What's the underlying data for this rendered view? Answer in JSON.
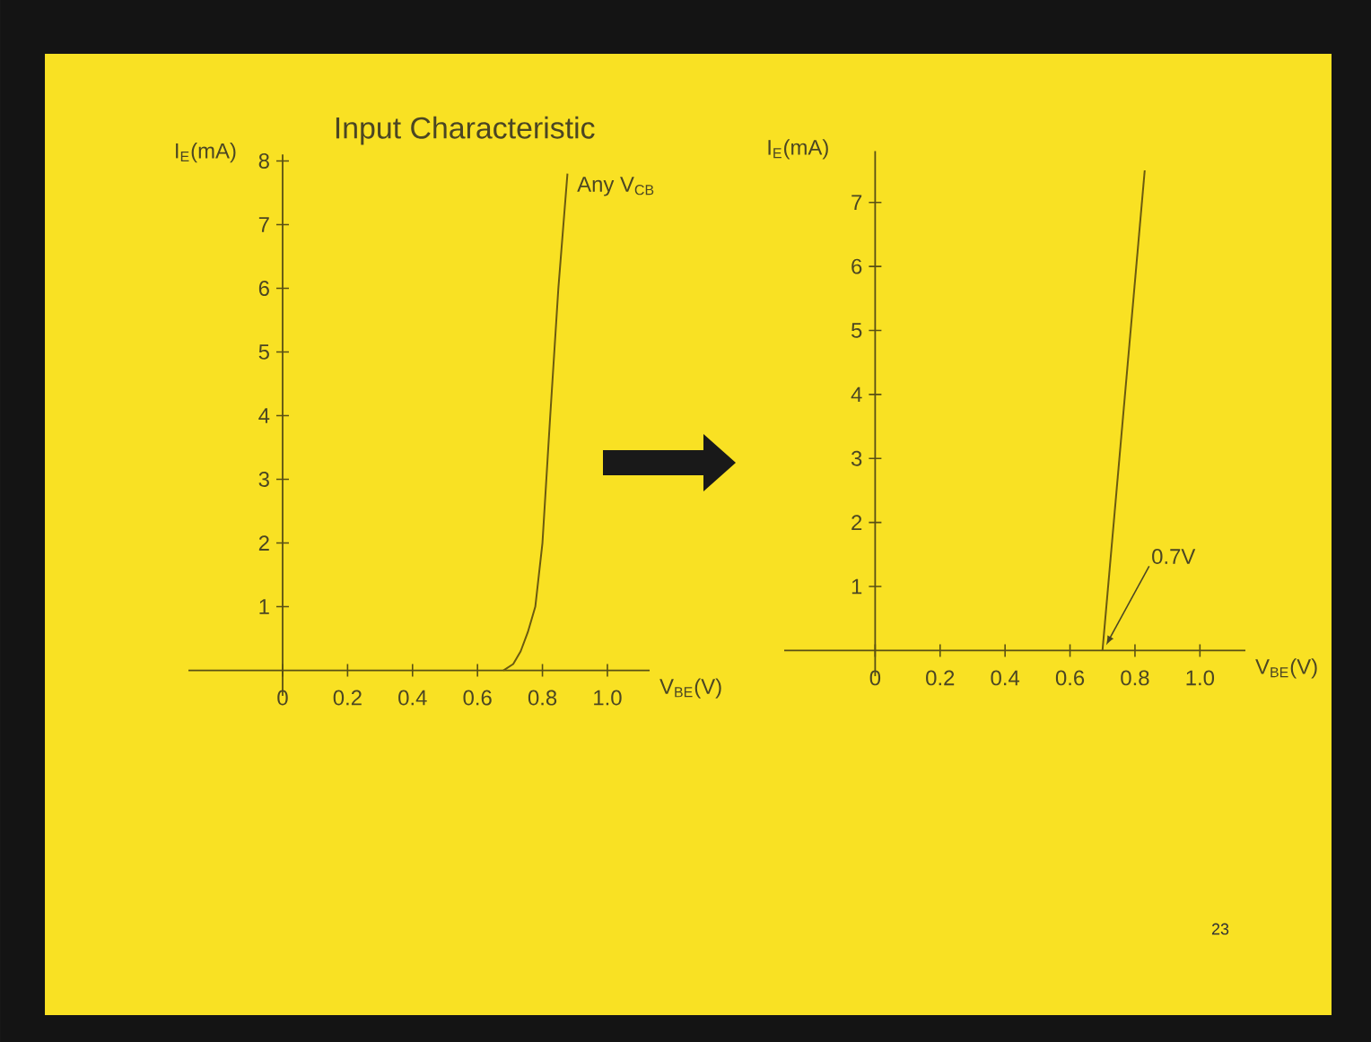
{
  "chart_data": [
    {
      "type": "line",
      "title": "Input Characteristic",
      "xlabel": "V$_{BE}$(V)",
      "ylabel": "I$_{E}$(mA)",
      "x": [
        0.68,
        0.71,
        0.733,
        0.755,
        0.778,
        0.8,
        0.824,
        0.849,
        0.877
      ],
      "series": [
        {
          "color": "#6b5a10",
          "values": [
            0,
            0.1,
            0.3,
            0.6,
            1,
            2,
            4,
            6,
            7.8
          ]
        }
      ],
      "xlim": [
        -0.29,
        1.13
      ],
      "ylim": [
        -0.4,
        8.1
      ],
      "xticks": [
        0,
        0.2,
        0.4,
        0.6,
        0.8,
        {
          "value": 1,
          "label": "1.0"
        }
      ],
      "yticks": [
        1,
        2,
        3,
        4,
        5,
        6,
        7,
        8
      ],
      "marker": "none",
      "line_style": "solid",
      "annotations": [
        {
          "text": "Any V$_{CB}$",
          "x": 0.9,
          "y": 7.6
        },
        "23"
      ]
    },
    {
      "type": "line",
      "xlabel": "V$_{BE}$(V)",
      "ylabel": "I$_{E}$(mA)",
      "x": [
        0.7,
        0.83
      ],
      "series": [
        {
          "color": "#6b5a10",
          "values": [
            0,
            7.5
          ]
        }
      ],
      "xlim": [
        -0.28,
        1.14
      ],
      "ylim": [
        -0.4,
        7.8
      ],
      "xticks": [
        0,
        0.2,
        0.4,
        0.6,
        0.8,
        {
          "value": 1,
          "label": "1.0"
        }
      ],
      "yticks": [
        1,
        2,
        3,
        4,
        5,
        6,
        7
      ],
      "marker": "none",
      "line_style": "solid",
      "annotations": [
        {
          "text": "0.7V",
          "x": 0.7,
          "y": 0
        }
      ]
    }
  ]
}
